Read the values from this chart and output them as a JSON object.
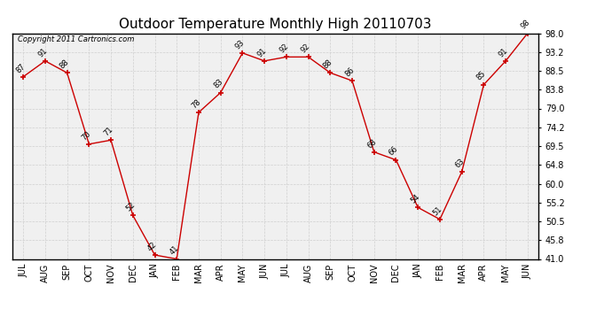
{
  "title": "Outdoor Temperature Monthly High 20110703",
  "copyright_text": "Copyright 2011 Cartronics.com",
  "categories": [
    "JUL",
    "AUG",
    "SEP",
    "OCT",
    "NOV",
    "DEC",
    "JAN",
    "FEB",
    "MAR",
    "APR",
    "MAY",
    "JUN",
    "JUL",
    "AUG",
    "SEP",
    "OCT",
    "NOV",
    "DEC",
    "JAN",
    "FEB",
    "MAR",
    "APR",
    "MAY",
    "JUN"
  ],
  "values": [
    87,
    91,
    88,
    70,
    71,
    52,
    42,
    41,
    78,
    83,
    93,
    91,
    92,
    92,
    88,
    86,
    68,
    66,
    54,
    51,
    63,
    85,
    91,
    98
  ],
  "ylim": [
    41.0,
    98.0
  ],
  "yticks": [
    41.0,
    45.8,
    50.5,
    55.2,
    60.0,
    64.8,
    69.5,
    74.2,
    79.0,
    83.8,
    88.5,
    93.2,
    98.0
  ],
  "line_color": "#cc0000",
  "marker": "+",
  "marker_size": 5,
  "marker_color": "#cc0000",
  "bg_color": "#ffffff",
  "plot_bg_color": "#f0f0f0",
  "grid_color": "#cccccc",
  "title_fontsize": 11,
  "tick_fontsize": 7,
  "annot_fontsize": 6,
  "copyright_fontsize": 6
}
